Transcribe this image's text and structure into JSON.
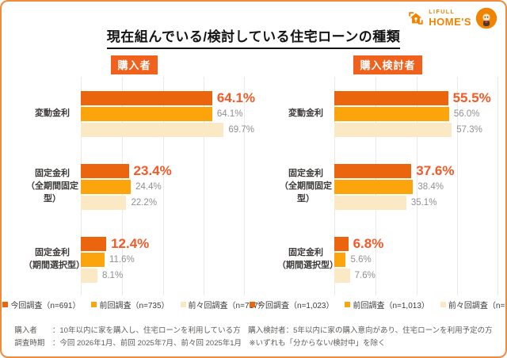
{
  "brand": {
    "name_top": "LIFULL",
    "name_bottom": "HOME'S"
  },
  "title": "現在組んでいる/検討している住宅ローンの種類",
  "chart_data": [
    {
      "type": "bar",
      "orientation": "horizontal",
      "panel_label": "購入者",
      "categories": [
        [
          "変動金利"
        ],
        [
          "固定金利",
          "（全期間固定型）"
        ],
        [
          "固定金利",
          "（期間選択型）"
        ]
      ],
      "xlim": [
        0,
        80
      ],
      "grid": true,
      "legend_position": "bottom",
      "series": [
        {
          "name": "今回調査（n=691）",
          "color": "#EB650E",
          "label_style": "current",
          "values": [
            64.1,
            23.4,
            12.4
          ],
          "labels": [
            "64.1%",
            "23.4%",
            "12.4%"
          ]
        },
        {
          "name": "前回調査（n=735）",
          "color": "#FBA40B",
          "label_style": "past",
          "values": [
            64.1,
            24.4,
            11.6
          ],
          "labels": [
            "64.1%",
            "24.4%",
            "11.6%"
          ]
        },
        {
          "name": "前々回調査（n=717）",
          "color": "#FBE9C6",
          "label_style": "past",
          "values": [
            69.7,
            22.2,
            8.1
          ],
          "labels": [
            "69.7%",
            "22.2%",
            "8.1%"
          ]
        }
      ]
    },
    {
      "type": "bar",
      "orientation": "horizontal",
      "panel_label": "購入検討者",
      "categories": [
        [
          "変動金利"
        ],
        [
          "固定金利",
          "（全期間固定型）"
        ],
        [
          "固定金利",
          "（期間選択型）"
        ]
      ],
      "xlim": [
        0,
        80
      ],
      "grid": true,
      "legend_position": "bottom",
      "series": [
        {
          "name": "今回調査（n=1,023）",
          "color": "#EB650E",
          "label_style": "current",
          "values": [
            55.5,
            37.6,
            6.8
          ],
          "labels": [
            "55.5%",
            "37.6%",
            "6.8%"
          ]
        },
        {
          "name": "前回調査（n=1,013）",
          "color": "#FBA40B",
          "label_style": "past",
          "values": [
            56.0,
            38.4,
            5.6
          ],
          "labels": [
            "56.0%",
            "38.4%",
            "5.6%"
          ]
        },
        {
          "name": "前々回調査（n=754）",
          "color": "#FBE9C6",
          "label_style": "past",
          "values": [
            57.3,
            35.1,
            7.6
          ],
          "labels": [
            "57.3%",
            "35.1%",
            "7.6%"
          ]
        }
      ]
    }
  ],
  "footer": {
    "lines": [
      "購入者　　：10年以内に家を購入し、住宅ローンを利用している方　購入検討者：5年以内に家の購入意向があり、住宅ローンを利用予定の方",
      "調査時期　：今回 2026年1月、前回 2025年7月、前々回 2025年1月　※いずれも「分からない/検討中」を除く"
    ]
  },
  "colors": {
    "accent": "#F08300",
    "border": "#ED8C3F",
    "badge_bg": "#F0611E",
    "value_current": "#F25A28",
    "value_past": "#8F8F8F",
    "gridline": "#E9E9E6"
  }
}
